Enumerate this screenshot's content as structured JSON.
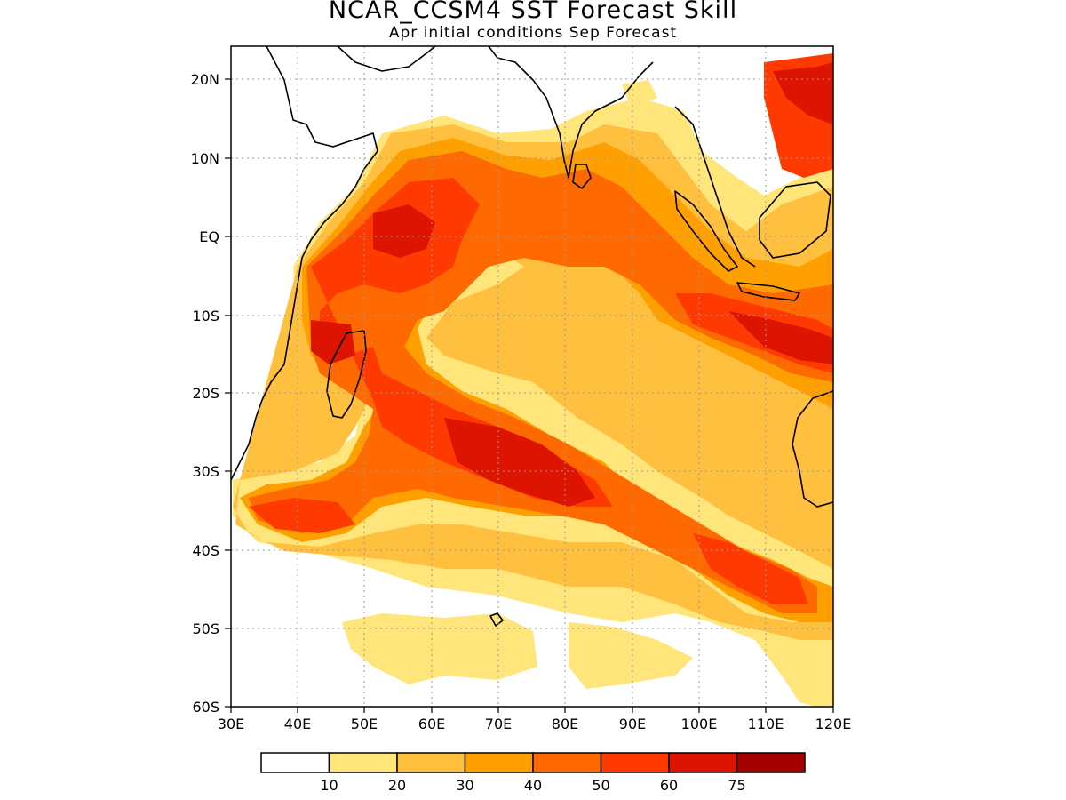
{
  "title": "NCAR_CCSM4 SST Forecast Skill",
  "subtitle": "Apr initial conditions  Sep Forecast",
  "lat_ticks": [
    "20N",
    "10N",
    "EQ",
    "10S",
    "20S",
    "30S",
    "40S",
    "50S",
    "60S"
  ],
  "lon_ticks": [
    "30E",
    "40E",
    "50E",
    "60E",
    "70E",
    "80E",
    "90E",
    "100E",
    "110E",
    "120E"
  ],
  "colorbar": {
    "colors": [
      "#ffffff",
      "#ffe57a",
      "#ffc040",
      "#ffa000",
      "#ff6a00",
      "#ff3a00",
      "#dd1500",
      "#a50000"
    ],
    "labels": [
      "10",
      "20",
      "30",
      "40",
      "50",
      "60",
      "75"
    ]
  },
  "legend_colors": {
    "c10": "#ffe57a",
    "c20": "#ffc040",
    "c30": "#ffa000",
    "c40": "#ff6a00",
    "c50": "#ff3a00",
    "c60": "#dd1500",
    "c75": "#a50000"
  }
}
